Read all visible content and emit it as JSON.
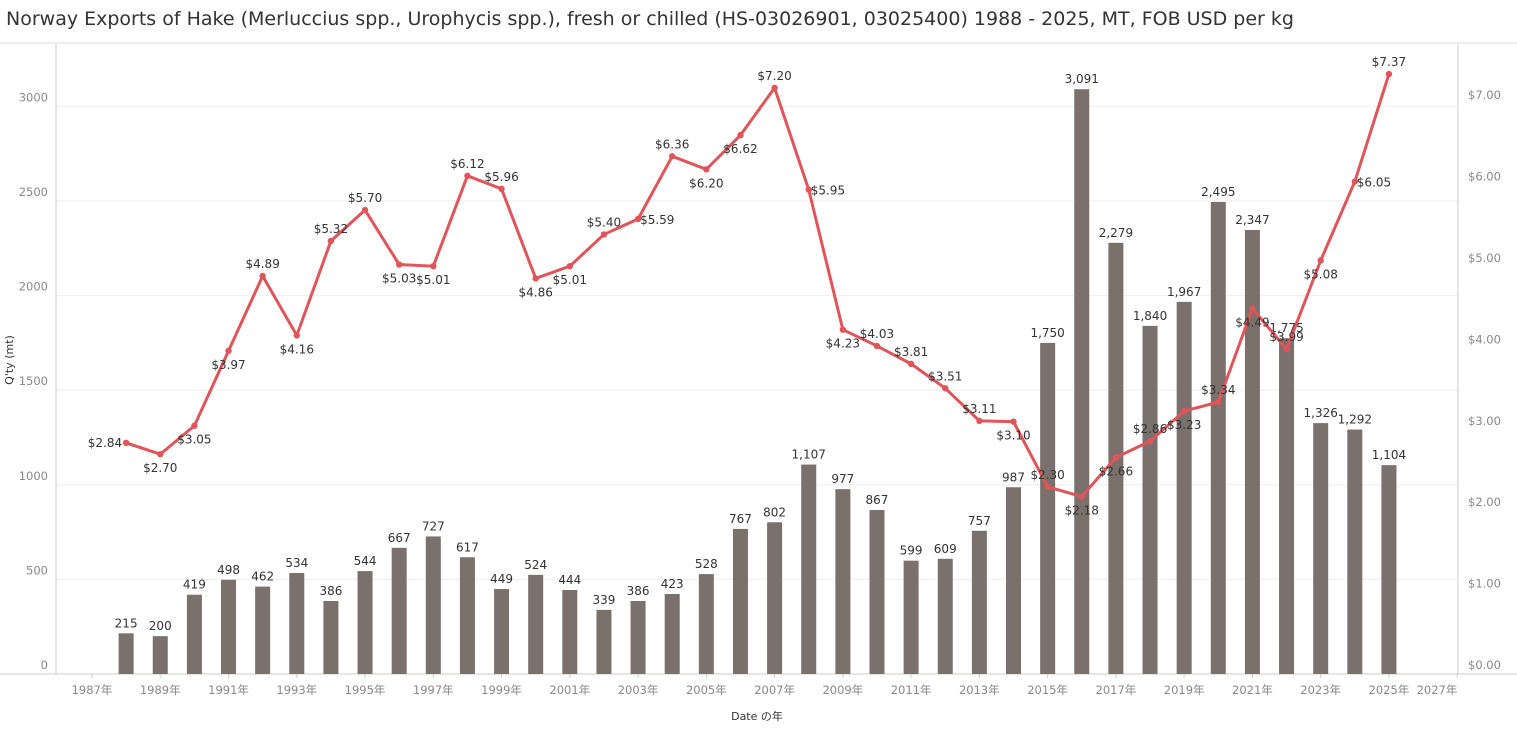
{
  "title": "Norway Exports of Hake (Merluccius spp., Urophycis spp.), fresh or chilled (HS-03026901, 03025400) 1988 - 2025, MT, FOB USD per kg",
  "colors": {
    "bars": "#7a706c",
    "line": "#e05559",
    "grid": "#eeeeee"
  },
  "chart_data": {
    "type": "bar+line",
    "title": "Norway Exports of Hake (Merluccius spp., Urophycis spp.), fresh or chilled (HS-03026901, 03025400) 1988 - 2025, MT, FOB USD per kg",
    "xlabel": "Date の年",
    "ylabel": "Q'ty (mt)",
    "x_ticks": [
      "1987年",
      "1989年",
      "1991年",
      "1993年",
      "1995年",
      "1997年",
      "1999年",
      "2001年",
      "2003年",
      "2005年",
      "2007年",
      "2009年",
      "2011年",
      "2013年",
      "2015年",
      "2017年",
      "2019年",
      "2021年",
      "2023年",
      "2025年",
      "2027年"
    ],
    "y_left_ticks": [
      "0",
      "500",
      "1000",
      "1500",
      "2000",
      "2500",
      "3000"
    ],
    "y_right_ticks": [
      "$0.00",
      "$1.00",
      "$2.00",
      "$3.00",
      "$4.00",
      "$5.00",
      "$6.00",
      "$7.00"
    ],
    "x_range": [
      1987,
      2027
    ],
    "ylim_left": [
      0,
      3330
    ],
    "ylim_right": [
      0,
      7.7
    ],
    "grid": true,
    "years": [
      1988,
      1989,
      1990,
      1991,
      1992,
      1993,
      1994,
      1995,
      1996,
      1997,
      1998,
      1999,
      2000,
      2001,
      2002,
      2003,
      2004,
      2005,
      2006,
      2007,
      2008,
      2009,
      2010,
      2011,
      2012,
      2013,
      2014,
      2015,
      2016,
      2017,
      2018,
      2019,
      2020,
      2021,
      2022,
      2023,
      2024,
      2025
    ],
    "series": [
      {
        "type": "bar",
        "axis": "left",
        "values": [
          215,
          200,
          419,
          498,
          462,
          534,
          386,
          544,
          667,
          727,
          617,
          449,
          524,
          444,
          339,
          386,
          423,
          528,
          767,
          802,
          1107,
          977,
          867,
          599,
          609,
          757,
          987,
          1750,
          3091,
          2279,
          1840,
          1967,
          2495,
          2347,
          1775,
          1326,
          1292,
          1104
        ],
        "labels": [
          "215",
          "200",
          "419",
          "498",
          "462",
          "534",
          "386",
          "544",
          "667",
          "727",
          "617",
          "449",
          "524",
          "444",
          "339",
          "386",
          "423",
          "528",
          "767",
          "802",
          "1,107",
          "977",
          "867",
          "599",
          "609",
          "757",
          "987",
          "1,750",
          "3,091",
          "2,279",
          "1,840",
          "1,967",
          "2,495",
          "2,347",
          "1,775",
          "1,326",
          "1,292",
          "1,104"
        ]
      },
      {
        "type": "line",
        "axis": "right",
        "values": [
          2.84,
          2.7,
          3.05,
          3.97,
          4.89,
          4.16,
          5.32,
          5.7,
          5.03,
          5.01,
          6.12,
          5.96,
          4.86,
          5.01,
          5.4,
          5.59,
          6.36,
          6.2,
          6.62,
          7.2,
          5.95,
          4.23,
          4.03,
          3.81,
          3.51,
          3.11,
          3.1,
          2.3,
          2.18,
          2.66,
          2.86,
          3.23,
          3.34,
          4.49,
          3.99,
          5.08,
          6.05,
          7.37
        ],
        "labels": [
          "$2.84",
          "$2.70",
          "$3.05",
          "$3.97",
          "$4.89",
          "$4.16",
          "$5.32",
          "$5.70",
          "$5.03",
          "$5.01",
          "$6.12",
          "$5.96",
          "$4.86",
          "$5.01",
          "$5.40",
          "$5.59",
          "$6.36",
          "$6.20",
          "$6.62",
          "$7.20",
          "$5.95",
          "$4.23",
          "$4.03",
          "$3.81",
          "$3.51",
          "$3.11",
          "$3.10",
          "$2.30",
          "$2.18",
          "$2.66",
          "$2.86",
          "$3.23",
          "$3.34",
          "$4.49",
          "$3.99",
          "$5.08",
          "$6.05",
          "$7.37"
        ]
      }
    ]
  }
}
